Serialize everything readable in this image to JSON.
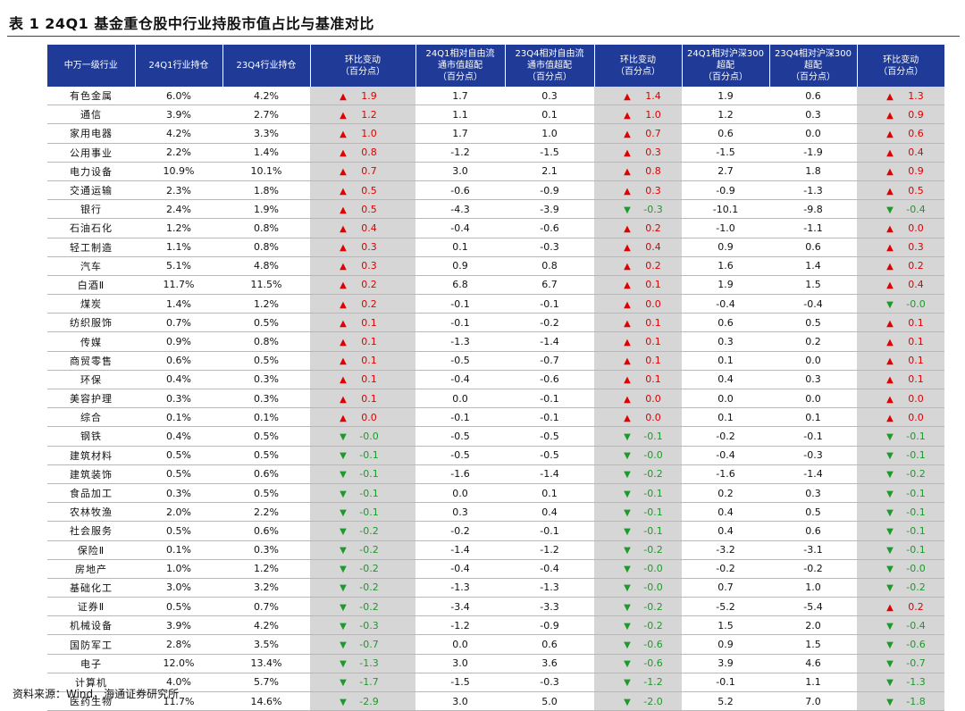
{
  "title": "表 1 24Q1 基金重仓股中行业持股市值占比与基准对比",
  "footer": "资料来源：Wind，海通证券研究所",
  "columns": [
    "中万一级行业",
    "24Q1行业持仓",
    "23Q4行业持仓",
    "环比变动\n（百分点）",
    "24Q1相对自由流\n通市值超配\n（百分点）",
    "23Q4相对自由流\n通市值超配\n（百分点）",
    "环比变动\n（百分点）",
    "24Q1相对沪深300\n超配\n（百分点）",
    "23Q4相对沪深300\n超配\n（百分点）",
    "环比变动\n（百分点）"
  ],
  "arrows": {
    "up": "▲",
    "down": "▼"
  },
  "colors": {
    "header_bg": "#1f3a97",
    "change_bg": "#d6d6d6",
    "up": "#e00000",
    "down": "#1c9a2a"
  },
  "rows": [
    {
      "industry": "有色金属",
      "h24": "6.0%",
      "h23": "4.2%",
      "chg1": "1.9",
      "d1": "up",
      "fr24": "1.7",
      "fr23": "0.3",
      "chg2": "1.4",
      "d2": "up",
      "hs24": "1.9",
      "hs23": "0.6",
      "chg3": "1.3",
      "d3": "up"
    },
    {
      "industry": "通信",
      "h24": "3.9%",
      "h23": "2.7%",
      "chg1": "1.2",
      "d1": "up",
      "fr24": "1.1",
      "fr23": "0.1",
      "chg2": "1.0",
      "d2": "up",
      "hs24": "1.2",
      "hs23": "0.3",
      "chg3": "0.9",
      "d3": "up"
    },
    {
      "industry": "家用电器",
      "h24": "4.2%",
      "h23": "3.3%",
      "chg1": "1.0",
      "d1": "up",
      "fr24": "1.7",
      "fr23": "1.0",
      "chg2": "0.7",
      "d2": "up",
      "hs24": "0.6",
      "hs23": "0.0",
      "chg3": "0.6",
      "d3": "up"
    },
    {
      "industry": "公用事业",
      "h24": "2.2%",
      "h23": "1.4%",
      "chg1": "0.8",
      "d1": "up",
      "fr24": "-1.2",
      "fr23": "-1.5",
      "chg2": "0.3",
      "d2": "up",
      "hs24": "-1.5",
      "hs23": "-1.9",
      "chg3": "0.4",
      "d3": "up"
    },
    {
      "industry": "电力设备",
      "h24": "10.9%",
      "h23": "10.1%",
      "chg1": "0.7",
      "d1": "up",
      "fr24": "3.0",
      "fr23": "2.1",
      "chg2": "0.8",
      "d2": "up",
      "hs24": "2.7",
      "hs23": "1.8",
      "chg3": "0.9",
      "d3": "up"
    },
    {
      "industry": "交通运输",
      "h24": "2.3%",
      "h23": "1.8%",
      "chg1": "0.5",
      "d1": "up",
      "fr24": "-0.6",
      "fr23": "-0.9",
      "chg2": "0.3",
      "d2": "up",
      "hs24": "-0.9",
      "hs23": "-1.3",
      "chg3": "0.5",
      "d3": "up"
    },
    {
      "industry": "银行",
      "h24": "2.4%",
      "h23": "1.9%",
      "chg1": "0.5",
      "d1": "up",
      "fr24": "-4.3",
      "fr23": "-3.9",
      "chg2": "-0.3",
      "d2": "down",
      "hs24": "-10.1",
      "hs23": "-9.8",
      "chg3": "-0.4",
      "d3": "down"
    },
    {
      "industry": "石油石化",
      "h24": "1.2%",
      "h23": "0.8%",
      "chg1": "0.4",
      "d1": "up",
      "fr24": "-0.4",
      "fr23": "-0.6",
      "chg2": "0.2",
      "d2": "up",
      "hs24": "-1.0",
      "hs23": "-1.1",
      "chg3": "0.0",
      "d3": "up"
    },
    {
      "industry": "轻工制造",
      "h24": "1.1%",
      "h23": "0.8%",
      "chg1": "0.3",
      "d1": "up",
      "fr24": "0.1",
      "fr23": "-0.3",
      "chg2": "0.4",
      "d2": "up",
      "hs24": "0.9",
      "hs23": "0.6",
      "chg3": "0.3",
      "d3": "up"
    },
    {
      "industry": "汽车",
      "h24": "5.1%",
      "h23": "4.8%",
      "chg1": "0.3",
      "d1": "up",
      "fr24": "0.9",
      "fr23": "0.8",
      "chg2": "0.2",
      "d2": "up",
      "hs24": "1.6",
      "hs23": "1.4",
      "chg3": "0.2",
      "d3": "up"
    },
    {
      "industry": "白酒Ⅱ",
      "h24": "11.7%",
      "h23": "11.5%",
      "chg1": "0.2",
      "d1": "up",
      "fr24": "6.8",
      "fr23": "6.7",
      "chg2": "0.1",
      "d2": "up",
      "hs24": "1.9",
      "hs23": "1.5",
      "chg3": "0.4",
      "d3": "up"
    },
    {
      "industry": "煤炭",
      "h24": "1.4%",
      "h23": "1.2%",
      "chg1": "0.2",
      "d1": "up",
      "fr24": "-0.1",
      "fr23": "-0.1",
      "chg2": "0.0",
      "d2": "up",
      "hs24": "-0.4",
      "hs23": "-0.4",
      "chg3": "-0.0",
      "d3": "down"
    },
    {
      "industry": "纺织服饰",
      "h24": "0.7%",
      "h23": "0.5%",
      "chg1": "0.1",
      "d1": "up",
      "fr24": "-0.1",
      "fr23": "-0.2",
      "chg2": "0.1",
      "d2": "up",
      "hs24": "0.6",
      "hs23": "0.5",
      "chg3": "0.1",
      "d3": "up"
    },
    {
      "industry": "传媒",
      "h24": "0.9%",
      "h23": "0.8%",
      "chg1": "0.1",
      "d1": "up",
      "fr24": "-1.3",
      "fr23": "-1.4",
      "chg2": "0.1",
      "d2": "up",
      "hs24": "0.3",
      "hs23": "0.2",
      "chg3": "0.1",
      "d3": "up"
    },
    {
      "industry": "商贸零售",
      "h24": "0.6%",
      "h23": "0.5%",
      "chg1": "0.1",
      "d1": "up",
      "fr24": "-0.5",
      "fr23": "-0.7",
      "chg2": "0.1",
      "d2": "up",
      "hs24": "0.1",
      "hs23": "0.0",
      "chg3": "0.1",
      "d3": "up"
    },
    {
      "industry": "环保",
      "h24": "0.4%",
      "h23": "0.3%",
      "chg1": "0.1",
      "d1": "up",
      "fr24": "-0.4",
      "fr23": "-0.6",
      "chg2": "0.1",
      "d2": "up",
      "hs24": "0.4",
      "hs23": "0.3",
      "chg3": "0.1",
      "d3": "up"
    },
    {
      "industry": "美容护理",
      "h24": "0.3%",
      "h23": "0.3%",
      "chg1": "0.1",
      "d1": "up",
      "fr24": "0.0",
      "fr23": "-0.1",
      "chg2": "0.0",
      "d2": "up",
      "hs24": "0.0",
      "hs23": "0.0",
      "chg3": "0.0",
      "d3": "up"
    },
    {
      "industry": "综合",
      "h24": "0.1%",
      "h23": "0.1%",
      "chg1": "0.0",
      "d1": "up",
      "fr24": "-0.1",
      "fr23": "-0.1",
      "chg2": "0.0",
      "d2": "up",
      "hs24": "0.1",
      "hs23": "0.1",
      "chg3": "0.0",
      "d3": "up"
    },
    {
      "industry": "钢铁",
      "h24": "0.4%",
      "h23": "0.5%",
      "chg1": "-0.0",
      "d1": "down",
      "fr24": "-0.5",
      "fr23": "-0.5",
      "chg2": "-0.1",
      "d2": "down",
      "hs24": "-0.2",
      "hs23": "-0.1",
      "chg3": "-0.1",
      "d3": "down"
    },
    {
      "industry": "建筑材料",
      "h24": "0.5%",
      "h23": "0.5%",
      "chg1": "-0.1",
      "d1": "down",
      "fr24": "-0.5",
      "fr23": "-0.5",
      "chg2": "-0.0",
      "d2": "down",
      "hs24": "-0.4",
      "hs23": "-0.3",
      "chg3": "-0.1",
      "d3": "down"
    },
    {
      "industry": "建筑装饰",
      "h24": "0.5%",
      "h23": "0.6%",
      "chg1": "-0.1",
      "d1": "down",
      "fr24": "-1.6",
      "fr23": "-1.4",
      "chg2": "-0.2",
      "d2": "down",
      "hs24": "-1.6",
      "hs23": "-1.4",
      "chg3": "-0.2",
      "d3": "down"
    },
    {
      "industry": "食品加工",
      "h24": "0.3%",
      "h23": "0.5%",
      "chg1": "-0.1",
      "d1": "down",
      "fr24": "0.0",
      "fr23": "0.1",
      "chg2": "-0.1",
      "d2": "down",
      "hs24": "0.2",
      "hs23": "0.3",
      "chg3": "-0.1",
      "d3": "down"
    },
    {
      "industry": "农林牧渔",
      "h24": "2.0%",
      "h23": "2.2%",
      "chg1": "-0.1",
      "d1": "down",
      "fr24": "0.3",
      "fr23": "0.4",
      "chg2": "-0.1",
      "d2": "down",
      "hs24": "0.4",
      "hs23": "0.5",
      "chg3": "-0.1",
      "d3": "down"
    },
    {
      "industry": "社会服务",
      "h24": "0.5%",
      "h23": "0.6%",
      "chg1": "-0.2",
      "d1": "down",
      "fr24": "-0.2",
      "fr23": "-0.1",
      "chg2": "-0.1",
      "d2": "down",
      "hs24": "0.4",
      "hs23": "0.6",
      "chg3": "-0.1",
      "d3": "down"
    },
    {
      "industry": "保险Ⅱ",
      "h24": "0.1%",
      "h23": "0.3%",
      "chg1": "-0.2",
      "d1": "down",
      "fr24": "-1.4",
      "fr23": "-1.2",
      "chg2": "-0.2",
      "d2": "down",
      "hs24": "-3.2",
      "hs23": "-3.1",
      "chg3": "-0.1",
      "d3": "down"
    },
    {
      "industry": "房地产",
      "h24": "1.0%",
      "h23": "1.2%",
      "chg1": "-0.2",
      "d1": "down",
      "fr24": "-0.4",
      "fr23": "-0.4",
      "chg2": "-0.0",
      "d2": "down",
      "hs24": "-0.2",
      "hs23": "-0.2",
      "chg3": "-0.0",
      "d3": "down"
    },
    {
      "industry": "基础化工",
      "h24": "3.0%",
      "h23": "3.2%",
      "chg1": "-0.2",
      "d1": "down",
      "fr24": "-1.3",
      "fr23": "-1.3",
      "chg2": "-0.0",
      "d2": "down",
      "hs24": "0.7",
      "hs23": "1.0",
      "chg3": "-0.2",
      "d3": "down"
    },
    {
      "industry": "证券Ⅱ",
      "h24": "0.5%",
      "h23": "0.7%",
      "chg1": "-0.2",
      "d1": "down",
      "fr24": "-3.4",
      "fr23": "-3.3",
      "chg2": "-0.2",
      "d2": "down",
      "hs24": "-5.2",
      "hs23": "-5.4",
      "chg3": "0.2",
      "d3": "up"
    },
    {
      "industry": "机械设备",
      "h24": "3.9%",
      "h23": "4.2%",
      "chg1": "-0.3",
      "d1": "down",
      "fr24": "-1.2",
      "fr23": "-0.9",
      "chg2": "-0.2",
      "d2": "down",
      "hs24": "1.5",
      "hs23": "2.0",
      "chg3": "-0.4",
      "d3": "down"
    },
    {
      "industry": "国防军工",
      "h24": "2.8%",
      "h23": "3.5%",
      "chg1": "-0.7",
      "d1": "down",
      "fr24": "0.0",
      "fr23": "0.6",
      "chg2": "-0.6",
      "d2": "down",
      "hs24": "0.9",
      "hs23": "1.5",
      "chg3": "-0.6",
      "d3": "down"
    },
    {
      "industry": "电子",
      "h24": "12.0%",
      "h23": "13.4%",
      "chg1": "-1.3",
      "d1": "down",
      "fr24": "3.0",
      "fr23": "3.6",
      "chg2": "-0.6",
      "d2": "down",
      "hs24": "3.9",
      "hs23": "4.6",
      "chg3": "-0.7",
      "d3": "down"
    },
    {
      "industry": "计算机",
      "h24": "4.0%",
      "h23": "5.7%",
      "chg1": "-1.7",
      "d1": "down",
      "fr24": "-1.5",
      "fr23": "-0.3",
      "chg2": "-1.2",
      "d2": "down",
      "hs24": "-0.1",
      "hs23": "1.1",
      "chg3": "-1.3",
      "d3": "down"
    },
    {
      "industry": "医药生物",
      "h24": "11.7%",
      "h23": "14.6%",
      "chg1": "-2.9",
      "d1": "down",
      "fr24": "3.0",
      "fr23": "5.0",
      "chg2": "-2.0",
      "d2": "down",
      "hs24": "5.2",
      "hs23": "7.0",
      "chg3": "-1.8",
      "d3": "down"
    }
  ]
}
